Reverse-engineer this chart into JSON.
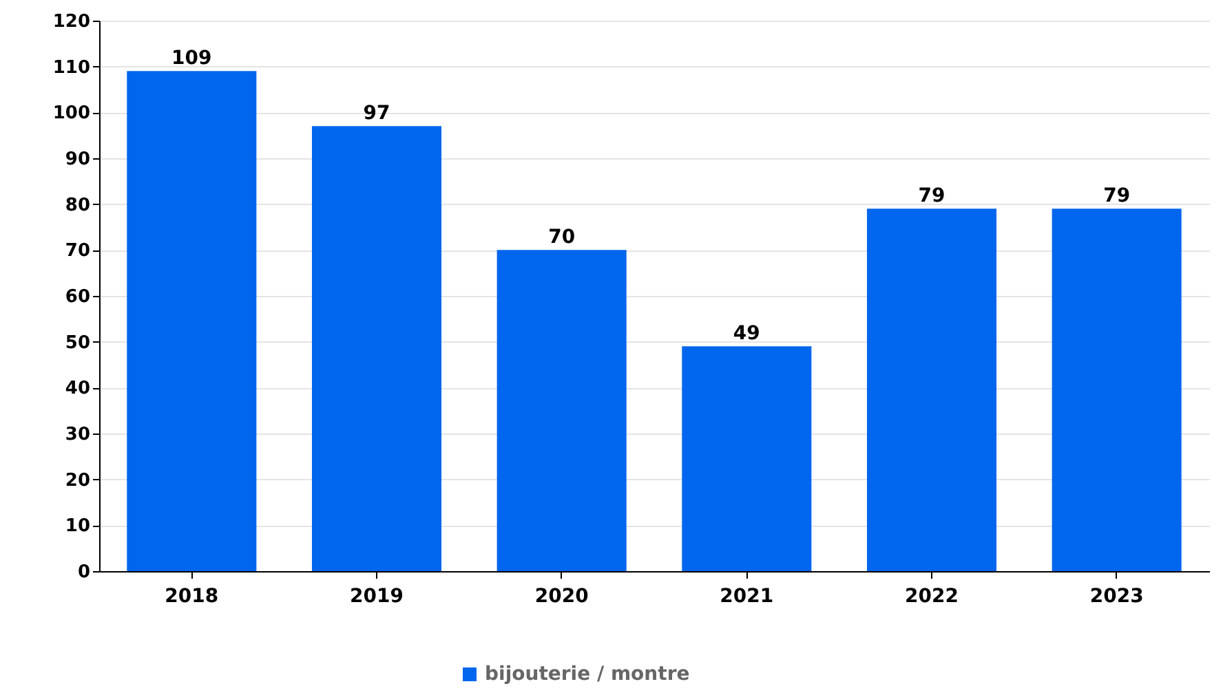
{
  "chart_data": {
    "type": "bar",
    "categories": [
      "2018",
      "2019",
      "2020",
      "2021",
      "2022",
      "2023"
    ],
    "series": [
      {
        "name": "bijouterie / montre",
        "color": "#0066ee",
        "values": [
          109,
          97,
          70,
          49,
          79,
          79
        ]
      }
    ],
    "ylim": [
      0,
      120
    ],
    "yticks": [
      0,
      10,
      20,
      30,
      40,
      50,
      60,
      70,
      80,
      90,
      100,
      110,
      120
    ],
    "grid": "y",
    "legend": "bottom",
    "data_labels": true
  }
}
